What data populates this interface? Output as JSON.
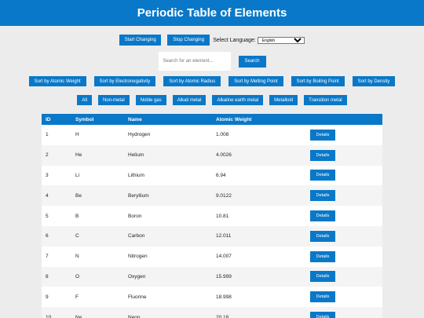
{
  "header": {
    "title": "Periodic Table of Elements"
  },
  "controls": {
    "start_label": "Start Changing",
    "stop_label": "Stop Changing",
    "language_label": "Select Language:",
    "language_selected": "English"
  },
  "search": {
    "placeholder": "Search for an element...",
    "button_label": "Search"
  },
  "sort_buttons": [
    "Sort by Atomic Weight",
    "Sort by Electronegativity",
    "Sort by Atomic Radius",
    "Sort by Melting Point",
    "Sort by Boiling Point",
    "Sort by Density"
  ],
  "filter_buttons": [
    "All",
    "Non-metal",
    "Noble gas",
    "Alkali metal",
    "Alkaline earth metal",
    "Metalloid",
    "Transition metal"
  ],
  "table": {
    "headers": [
      "ID",
      "Symbol",
      "Name",
      "Atomic Weight",
      ""
    ],
    "details_label": "Details",
    "rows": [
      [
        "1",
        "H",
        "Hydrogen",
        "1.008"
      ],
      [
        "2",
        "He",
        "Helium",
        "4.0026"
      ],
      [
        "3",
        "Li",
        "Lithium",
        "6.94"
      ],
      [
        "4",
        "Be",
        "Beryllium",
        "9.0122"
      ],
      [
        "5",
        "B",
        "Boron",
        "10.81"
      ],
      [
        "6",
        "C",
        "Carbon",
        "12.011"
      ],
      [
        "7",
        "N",
        "Nitrogen",
        "14.007"
      ],
      [
        "8",
        "O",
        "Oxygen",
        "15.999"
      ],
      [
        "9",
        "F",
        "Fluorine",
        "18.998"
      ],
      [
        "10",
        "Ne",
        "Neon",
        "20.18"
      ]
    ]
  },
  "colors": {
    "accent": "#0a78c8",
    "background": "#ececec"
  }
}
